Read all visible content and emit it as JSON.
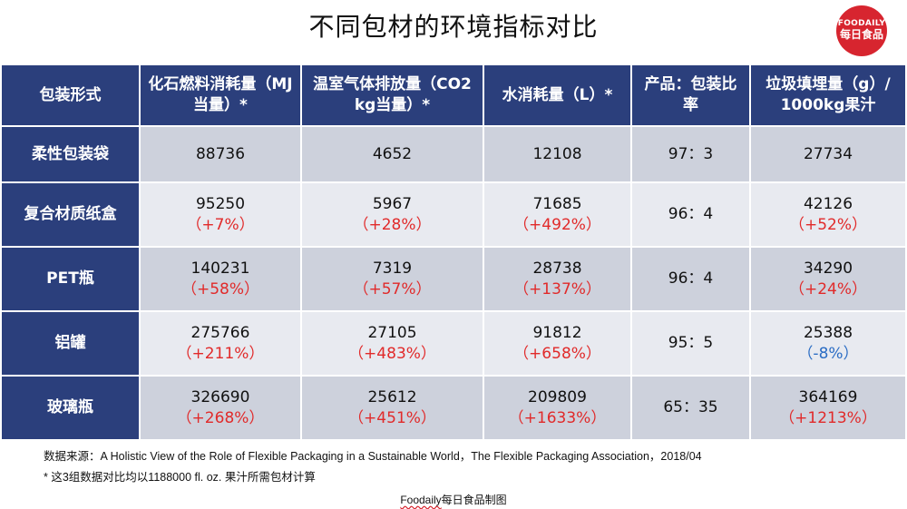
{
  "title": "不同包材的环境指标对比",
  "logo": {
    "line1": "FOODAILY",
    "line2": "每日食品"
  },
  "colors": {
    "header_bg": "#2b3f7c",
    "positive_pct": "#e12a2a",
    "negative_pct": "#2a6cc4",
    "logo_bg": "#d7252f"
  },
  "table": {
    "headers": [
      "包装形式",
      "化石燃料消耗量（MJ当量）*",
      "温室气体排放量（CO2 kg当量）*",
      "水消耗量（L）*",
      "产品：包装比率",
      "垃圾填埋量（g）/ 1000kg果汁"
    ],
    "rows": [
      {
        "name": "柔性包装袋",
        "fossil": {
          "value": "88736",
          "pct": ""
        },
        "ghg": {
          "value": "4652",
          "pct": ""
        },
        "water": {
          "value": "12108",
          "pct": ""
        },
        "ratio": "97：3",
        "landfill": {
          "value": "27734",
          "pct": ""
        }
      },
      {
        "name": "复合材质纸盒",
        "fossil": {
          "value": "95250",
          "pct": "（+7%）"
        },
        "ghg": {
          "value": "5967",
          "pct": "（+28%）"
        },
        "water": {
          "value": "71685",
          "pct": "（+492%）"
        },
        "ratio": "96：4",
        "landfill": {
          "value": "42126",
          "pct": "（+52%）"
        }
      },
      {
        "name": "PET瓶",
        "fossil": {
          "value": "140231",
          "pct": "（+58%）"
        },
        "ghg": {
          "value": "7319",
          "pct": "（+57%）"
        },
        "water": {
          "value": "28738",
          "pct": "（+137%）"
        },
        "ratio": "96：4",
        "landfill": {
          "value": "34290",
          "pct": "（+24%）"
        }
      },
      {
        "name": "铝罐",
        "fossil": {
          "value": "275766",
          "pct": "（+211%）"
        },
        "ghg": {
          "value": "27105",
          "pct": "（+483%）"
        },
        "water": {
          "value": "91812",
          "pct": "（+658%）"
        },
        "ratio": "95：5",
        "landfill": {
          "value": "25388",
          "pct": "（-8%）"
        }
      },
      {
        "name": "玻璃瓶",
        "fossil": {
          "value": "326690",
          "pct": "（+268%）"
        },
        "ghg": {
          "value": "25612",
          "pct": "（+451%）"
        },
        "water": {
          "value": "209809",
          "pct": "（+1633%）"
        },
        "ratio": "65：35",
        "landfill": {
          "value": "364169",
          "pct": "（+1213%）"
        }
      }
    ]
  },
  "source": "数据来源：A Holistic View of the Role of Flexible Packaging in a Sustainable World，The Flexible Packaging Association，2018/04",
  "note": "* 这3组数据对比均以1188000 fl. oz. 果汁所需包材计算",
  "credit": {
    "brand": "Foodaily",
    "rest": "每日食品制图"
  }
}
